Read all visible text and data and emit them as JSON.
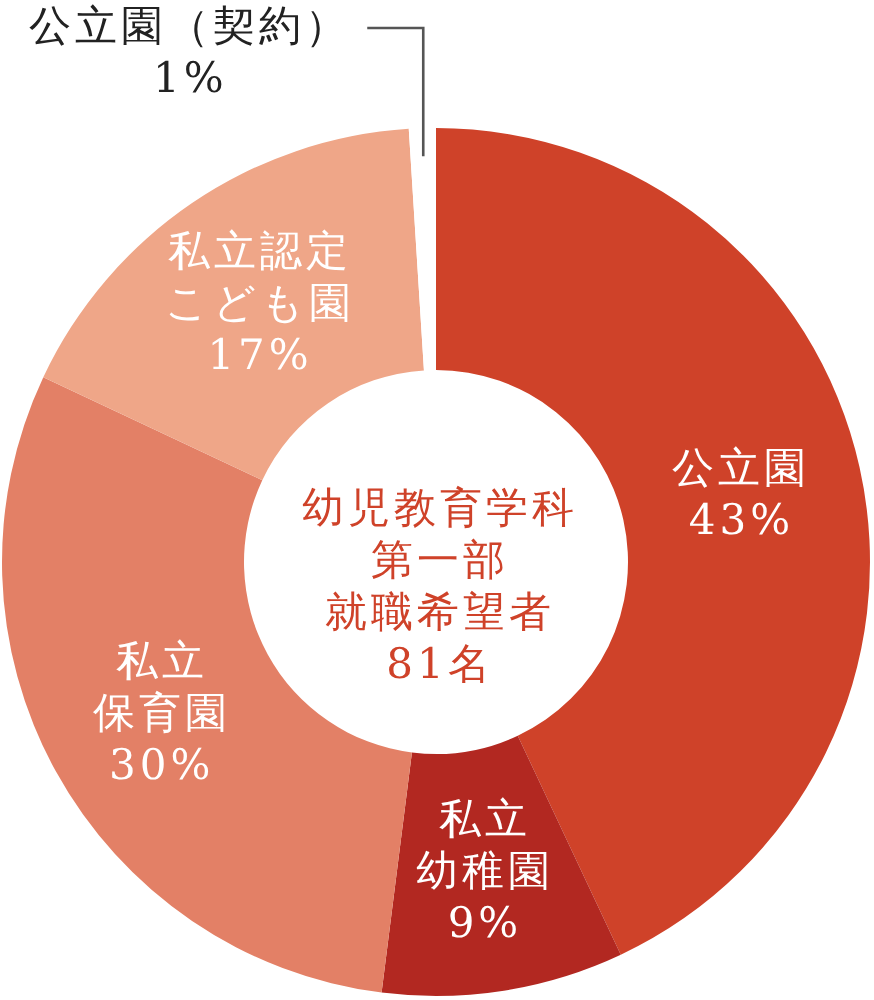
{
  "chart_data": {
    "type": "donut",
    "title": "幼児教育学科第一部",
    "subtitle": "就職希望者81名",
    "categories": [
      "公立園",
      "私立幼稚園",
      "私立保育園",
      "私立認定こども園",
      "公立園（契約）"
    ],
    "values": [
      43,
      9,
      30,
      17,
      1
    ],
    "colors": [
      "#cf4229",
      "#b22821",
      "#e38066",
      "#efa688",
      "#ffffff"
    ],
    "value_labels": [
      "43%",
      "9%",
      "30%",
      "17%",
      "1%"
    ]
  }
}
